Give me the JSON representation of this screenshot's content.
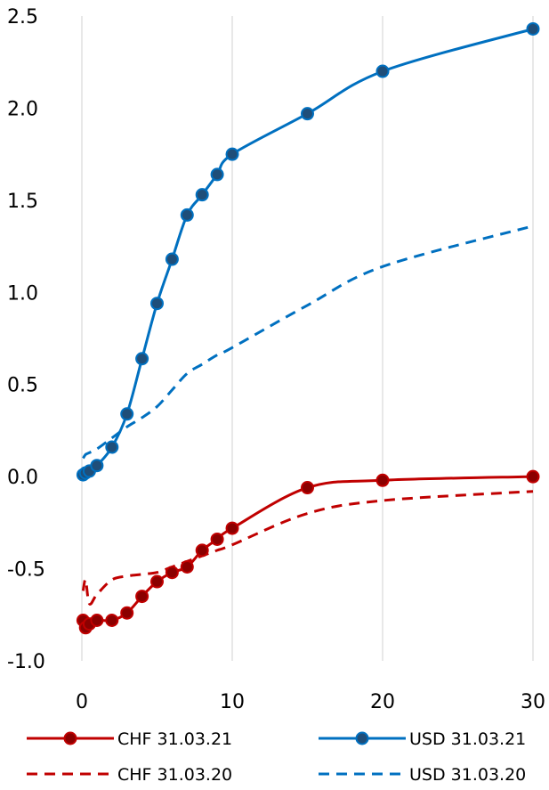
{
  "chart_data": {
    "type": "line",
    "title": "",
    "xlabel": "",
    "ylabel": "",
    "xlim": [
      0,
      30
    ],
    "ylim": [
      -1.0,
      2.5
    ],
    "x_ticks": [
      0,
      10,
      20,
      30
    ],
    "x_tick_labels": [
      "0",
      "10",
      "20",
      "30"
    ],
    "y_ticks": [
      2.5,
      2.0,
      1.5,
      1.0,
      0.5,
      0.0,
      -0.5,
      -1.0
    ],
    "y_tick_labels": [
      "2.5",
      "2.0",
      "1.5",
      "1.0",
      "0.5",
      "0.0",
      "-0.5",
      "-1.0"
    ],
    "grid": "vertical",
    "legend_position": "bottom",
    "series": [
      {
        "name": "CHF 31.03.21",
        "color": "#c00000",
        "style": "solid",
        "markers": true,
        "points": [
          [
            0.083,
            -0.78
          ],
          [
            0.25,
            -0.82
          ],
          [
            0.5,
            -0.8
          ],
          [
            1,
            -0.78
          ],
          [
            2,
            -0.78
          ],
          [
            3,
            -0.74
          ],
          [
            4,
            -0.65
          ],
          [
            5,
            -0.57
          ],
          [
            6,
            -0.52
          ],
          [
            7,
            -0.49
          ],
          [
            8,
            -0.4
          ],
          [
            9,
            -0.34
          ],
          [
            10,
            -0.28
          ],
          [
            15,
            -0.06
          ],
          [
            20,
            -0.02
          ],
          [
            30,
            0.0
          ]
        ]
      },
      {
        "name": "USD 31.03.21",
        "color": "#0070c0",
        "style": "solid",
        "markers": true,
        "points": [
          [
            0.083,
            0.01
          ],
          [
            0.25,
            0.02
          ],
          [
            0.5,
            0.03
          ],
          [
            1,
            0.06
          ],
          [
            2,
            0.16
          ],
          [
            3,
            0.34
          ],
          [
            4,
            0.64
          ],
          [
            5,
            0.94
          ],
          [
            6,
            1.18
          ],
          [
            7,
            1.42
          ],
          [
            8,
            1.53
          ],
          [
            9,
            1.64
          ],
          [
            10,
            1.75
          ],
          [
            15,
            1.97
          ],
          [
            20,
            2.2
          ],
          [
            30,
            2.43
          ]
        ]
      },
      {
        "name": "CHF 31.03.20",
        "color": "#c00000",
        "style": "dashed",
        "markers": false,
        "points": [
          [
            0.083,
            -0.62
          ],
          [
            0.25,
            -0.56
          ],
          [
            0.5,
            -0.69
          ],
          [
            1,
            -0.64
          ],
          [
            2,
            -0.56
          ],
          [
            3,
            -0.54
          ],
          [
            4,
            -0.53
          ],
          [
            5,
            -0.52
          ],
          [
            6,
            -0.49
          ],
          [
            7,
            -0.46
          ],
          [
            8,
            -0.43
          ],
          [
            9,
            -0.4
          ],
          [
            10,
            -0.37
          ],
          [
            15,
            -0.2
          ],
          [
            20,
            -0.13
          ],
          [
            30,
            -0.08
          ]
        ]
      },
      {
        "name": "USD 31.03.20",
        "color": "#0070c0",
        "style": "dashed",
        "markers": false,
        "points": [
          [
            0.083,
            0.1
          ],
          [
            0.25,
            0.12
          ],
          [
            0.5,
            0.13
          ],
          [
            1,
            0.15
          ],
          [
            2,
            0.21
          ],
          [
            3,
            0.27
          ],
          [
            4,
            0.32
          ],
          [
            5,
            0.38
          ],
          [
            6,
            0.47
          ],
          [
            7,
            0.56
          ],
          [
            8,
            0.61
          ],
          [
            9,
            0.66
          ],
          [
            10,
            0.7
          ],
          [
            15,
            0.93
          ],
          [
            20,
            1.14
          ],
          [
            30,
            1.36
          ]
        ]
      }
    ]
  }
}
